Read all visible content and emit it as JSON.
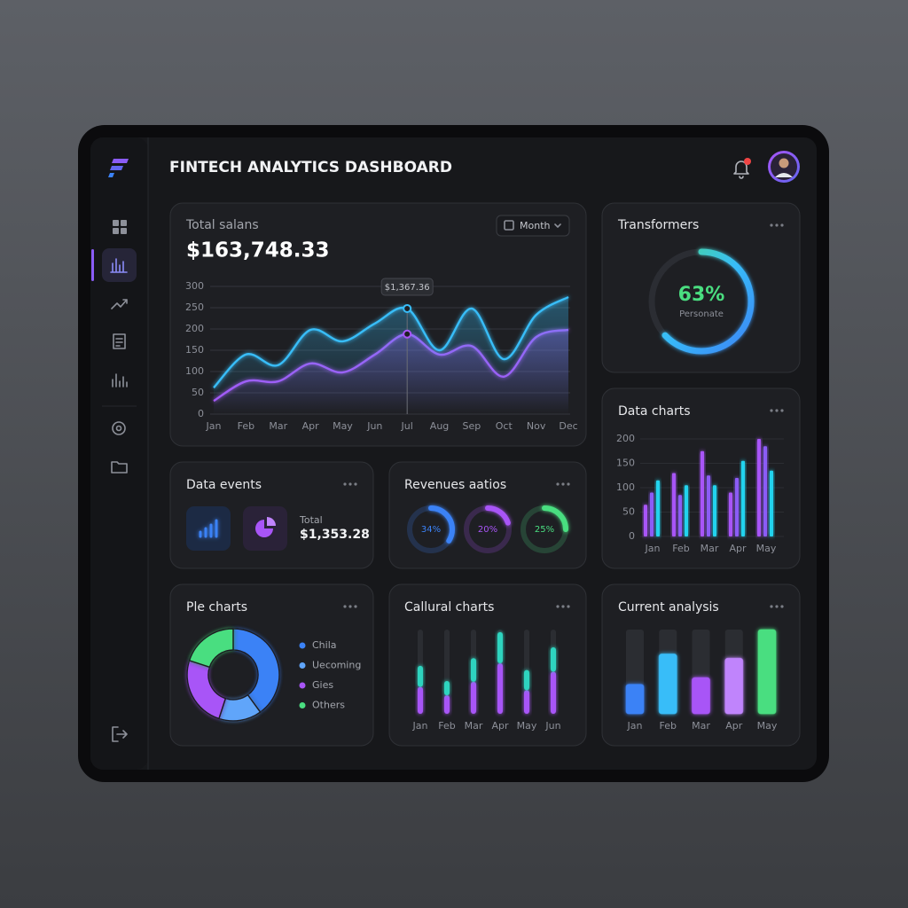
{
  "header": {
    "title": "FINTECH ANALYTICS DASHBOARD"
  },
  "total_chart": {
    "type": "line",
    "title": "Total salans",
    "total": "$163,748.33",
    "period": "Month",
    "tooltip": "$1,367.36",
    "categories": [
      "Jan",
      "Feb",
      "Mar",
      "Apr",
      "May",
      "Jun",
      "Jul",
      "Aug",
      "Sep",
      "Oct",
      "Nov",
      "Dec"
    ],
    "ylim": [
      0,
      300
    ],
    "yticks": [
      0,
      50,
      100,
      150,
      200,
      250,
      300
    ],
    "grid": true,
    "series": [
      {
        "color": "#38bdf8",
        "values": [
          62,
          140,
          115,
          198,
          171,
          213,
          248,
          150,
          248,
          129,
          233,
          275
        ]
      },
      {
        "color": "#a855f7",
        "values": [
          31,
          77,
          77,
          119,
          98,
          140,
          188,
          140,
          160,
          88,
          181,
          198
        ]
      }
    ]
  },
  "transformers": {
    "type": "gauge",
    "title": "Transformers",
    "value": 63,
    "value_label": "63%",
    "label": "Personate"
  },
  "data_charts": {
    "type": "bar",
    "title": "Data charts",
    "categories": [
      "Jan",
      "Feb",
      "Mar",
      "Apr",
      "May"
    ],
    "ylim": [
      0,
      200
    ],
    "yticks": [
      0,
      50,
      100,
      150,
      200
    ],
    "grid": true,
    "series": [
      {
        "color": "#a855f7",
        "values": [
          65,
          130,
          175,
          90,
          200
        ]
      },
      {
        "color": "#8b5cf6",
        "values": [
          90,
          85,
          125,
          120,
          185
        ]
      },
      {
        "color": "#22d3ee",
        "values": [
          115,
          105,
          105,
          155,
          135
        ]
      }
    ]
  },
  "data_events": {
    "title": "Data events",
    "total_label": "Total",
    "total": "$1,353.28"
  },
  "revenues": {
    "type": "ring",
    "title": "Revenues aatios",
    "values": [
      34,
      20,
      25
    ],
    "value_labels": [
      "34%",
      "20%",
      "25%"
    ],
    "colors": [
      "#3b82f6",
      "#a855f7",
      "#4ade80"
    ]
  },
  "pie_chart": {
    "type": "donut",
    "title": "Ple charts",
    "categories": [
      "Chila",
      "Uecoming",
      "Gies",
      "Others"
    ],
    "values": [
      40,
      15,
      25,
      20
    ],
    "colors": [
      "#3b82f6",
      "#60a5fa",
      "#a855f7",
      "#4ade80"
    ]
  },
  "callural_chart": {
    "type": "stacked_bar",
    "title": "Callural charts",
    "categories": [
      "Jan",
      "Feb",
      "Mar",
      "Apr",
      "May",
      "Jun"
    ],
    "ylim": [
      0,
      100
    ],
    "series": [
      {
        "color": "#a855f7",
        "values": [
          32,
          22,
          38,
          60,
          28,
          50
        ]
      },
      {
        "color": "#2dd4bf",
        "values": [
          25,
          17,
          28,
          37,
          24,
          29
        ]
      }
    ]
  },
  "current_analysis": {
    "type": "bar",
    "title": "Current analysis",
    "categories": [
      "Jan",
      "Feb",
      "Mar",
      "Apr",
      "May"
    ],
    "ylim": [
      0,
      100
    ],
    "values": [
      35,
      71,
      43,
      66,
      100
    ],
    "colors": [
      "#3b82f6",
      "#38bdf8",
      "#a855f7",
      "#c084fc",
      "#4ade80"
    ]
  }
}
